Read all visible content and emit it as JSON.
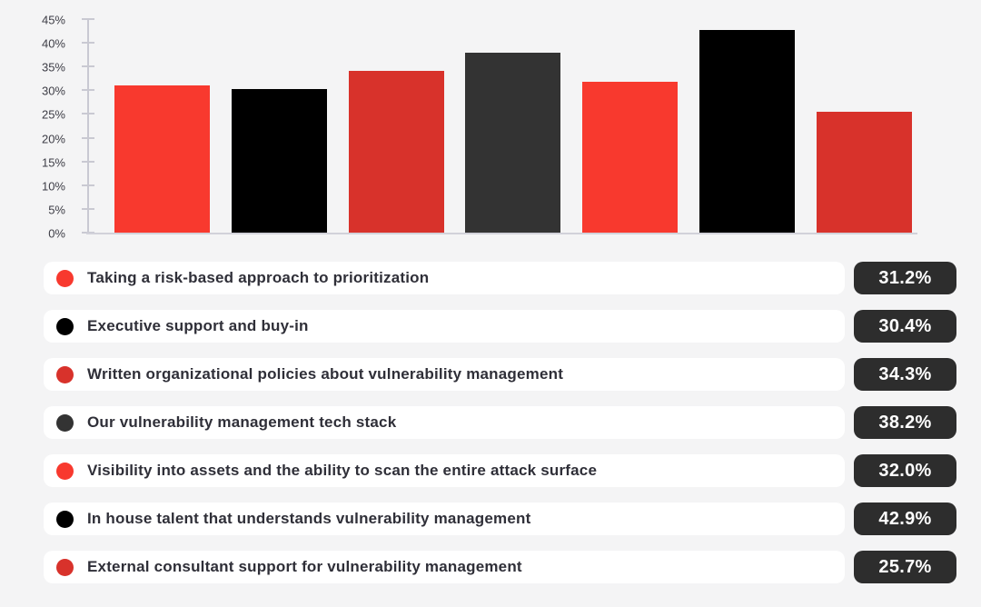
{
  "colors": {
    "background": "#f4f4f5",
    "axis_line": "#c9c9d2",
    "baseline": "#d2d2da",
    "axis_text": "#3d3d46",
    "legend_text": "#2f2f38",
    "legend_pill_bg": "#ffffff",
    "badge_bg": "#2d2d2d",
    "badge_text": "#ffffff",
    "bright_red": "#f8392e",
    "dark_red": "#d8322b",
    "black": "#000000",
    "dark_gray": "#333333"
  },
  "chart_data": {
    "type": "bar",
    "title": "",
    "xlabel": "",
    "ylabel": "",
    "categories": [
      "Taking a risk-based approach to prioritization",
      "Executive support and buy-in",
      "Written organizational policies about vulnerability management",
      "Our vulnerability management tech stack",
      "Visibility into assets and the ability to scan the entire attack surface",
      "In house talent that understands vulnerability management",
      "External consultant support for vulnerability management"
    ],
    "values": [
      31.2,
      30.4,
      34.3,
      38.2,
      32.0,
      42.9,
      25.7
    ],
    "value_labels": [
      "31.2%",
      "30.4%",
      "34.3%",
      "38.2%",
      "32.0%",
      "42.9%",
      "25.7%"
    ],
    "bar_colors": [
      "#f8392e",
      "#000000",
      "#d8322b",
      "#333333",
      "#f8392e",
      "#000000",
      "#d8322b"
    ],
    "ylim": [
      0,
      45
    ],
    "ytick_step": 5,
    "ytick_labels": [
      "0%",
      "5%",
      "10%",
      "15%",
      "20%",
      "25%",
      "30%",
      "35%",
      "40%",
      "45%"
    ],
    "grid": "off",
    "legend_position": "bottom"
  }
}
